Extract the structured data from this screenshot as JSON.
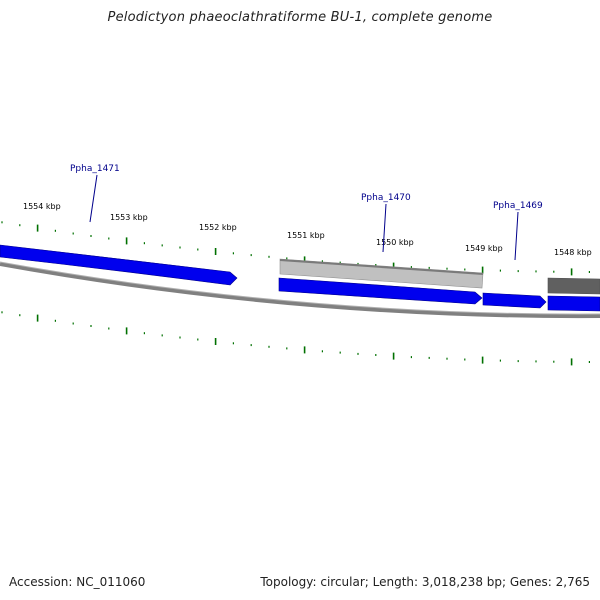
{
  "title": "Pelodictyon phaeoclathratiforme BU-1, complete genome",
  "footer": {
    "accession": "Accession: NC_011060",
    "summary": "Topology: circular; Length: 3,018,238 bp; Genes: 2,765"
  },
  "colors": {
    "forward_gene": "#0000ee",
    "reverse_gene_light": "#c0c0c0",
    "reverse_gene_dark": "#606060",
    "backbone": "#808080",
    "ticks": "#007000",
    "gene_label": "#00008b"
  },
  "ticks": [
    {
      "label": "1554 kbp"
    },
    {
      "label": "1553 kbp"
    },
    {
      "label": "1552 kbp"
    },
    {
      "label": "1551 kbp"
    },
    {
      "label": "1550 kbp"
    },
    {
      "label": "1549 kbp"
    },
    {
      "label": "1548 kbp"
    }
  ],
  "genes": [
    {
      "name": "Ppha_1471",
      "strand": "forward"
    },
    {
      "name": "Ppha_1470",
      "strand": "reverse"
    },
    {
      "name": "Ppha_1469",
      "strand": "forward"
    }
  ]
}
